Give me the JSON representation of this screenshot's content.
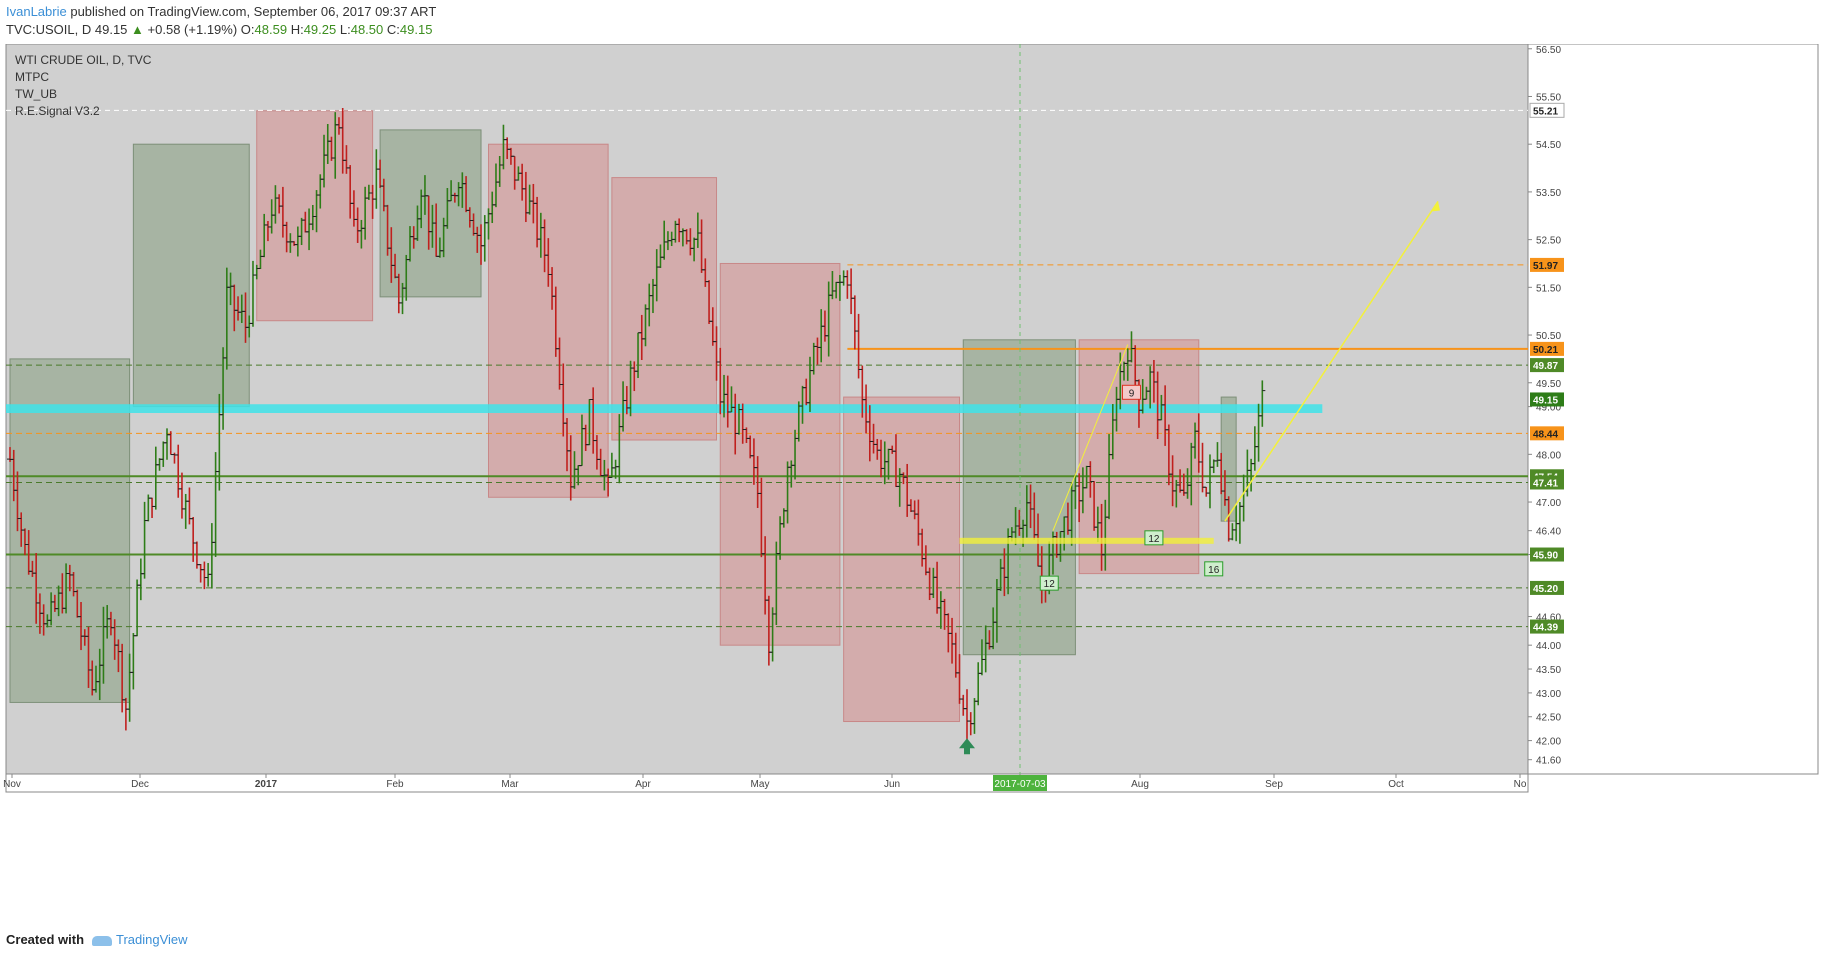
{
  "header": {
    "author": "IvanLabrie",
    "published": "published on TradingView.com, September 06, 2017 09:37 ART",
    "symbol": "TVC:USOIL, D",
    "price": "49.15",
    "change": "+0.58 (+1.19%)",
    "o_label": "O:",
    "o": "48.59",
    "h_label": "H:",
    "h": "49.25",
    "l_label": "L:",
    "l": "48.50",
    "c_label": "C:",
    "c": "49.15"
  },
  "legend": [
    "WTI CRUDE OIL, D, TVC",
    "MTPC",
    "TW_UB",
    "R.E.Signal V3.2"
  ],
  "footer": {
    "created": "Created with",
    "brand": "TradingView"
  },
  "colors": {
    "background": "#d0d0d0",
    "up_bar": "#2e7d18",
    "down_bar": "#c0201e",
    "green_box": "#9aab94",
    "red_box": "#d4a0a0",
    "cyan_band": "#3fe3e9",
    "orange": "#f7931a",
    "green_line": "#4f8a27"
  },
  "chart_data": {
    "type": "line",
    "title": "WTI CRUDE OIL, D, TVC",
    "y_range": [
      41.3,
      56.6
    ],
    "y_ticks": [
      "56.50",
      "55.50",
      "54.50",
      "53.50",
      "52.50",
      "51.50",
      "50.50",
      "49.50",
      "49.00",
      "48.00",
      "47.00",
      "46.40",
      "45.90",
      "44.60",
      "44.00",
      "43.50",
      "43.00",
      "42.50",
      "42.00",
      "41.60"
    ],
    "x_labels": [
      "Nov",
      "Dec",
      "2017",
      "Feb",
      "Mar",
      "Apr",
      "May",
      "Jun",
      "2017-07-03",
      "Aug",
      "Sep",
      "Oct",
      "No"
    ],
    "price_labels": [
      {
        "value": 55.21,
        "text": "55.21",
        "style": "white-dashed"
      },
      {
        "value": 51.97,
        "text": "51.97",
        "style": "orange"
      },
      {
        "value": 50.21,
        "text": "50.21",
        "style": "orange"
      },
      {
        "value": 49.87,
        "text": "49.87",
        "style": "green-dashed"
      },
      {
        "value": 49.15,
        "text": "49.15",
        "style": "current"
      },
      {
        "value": 48.44,
        "text": "48.44",
        "style": "orange"
      },
      {
        "value": 47.54,
        "text": "47.54",
        "style": "green"
      },
      {
        "value": 47.41,
        "text": "47.41",
        "style": "green-dashed"
      },
      {
        "value": 45.9,
        "text": "45.90",
        "style": "green"
      },
      {
        "value": 45.2,
        "text": "45.20",
        "style": "green-dashed"
      },
      {
        "value": 44.39,
        "text": "44.39",
        "style": "green-dashed"
      }
    ],
    "swings": [
      {
        "t": 0,
        "v": 47.9
      },
      {
        "t": 4,
        "v": 46.0
      },
      {
        "t": 10,
        "v": 44.4
      },
      {
        "t": 16,
        "v": 45.4
      },
      {
        "t": 22,
        "v": 43.1
      },
      {
        "t": 27,
        "v": 44.7
      },
      {
        "t": 31,
        "v": 42.7
      },
      {
        "t": 36,
        "v": 46.5
      },
      {
        "t": 42,
        "v": 48.6
      },
      {
        "t": 48,
        "v": 46.5
      },
      {
        "t": 53,
        "v": 45.2
      },
      {
        "t": 58,
        "v": 51.3
      },
      {
        "t": 63,
        "v": 50.7
      },
      {
        "t": 70,
        "v": 53.2
      },
      {
        "t": 77,
        "v": 52.4
      },
      {
        "t": 84,
        "v": 54.0
      },
      {
        "t": 88,
        "v": 55.0
      },
      {
        "t": 92,
        "v": 52.6
      },
      {
        "t": 98,
        "v": 53.8
      },
      {
        "t": 104,
        "v": 51.2
      },
      {
        "t": 110,
        "v": 53.7
      },
      {
        "t": 114,
        "v": 52.1
      },
      {
        "t": 120,
        "v": 53.9
      },
      {
        "t": 126,
        "v": 52.4
      },
      {
        "t": 132,
        "v": 54.4
      },
      {
        "t": 138,
        "v": 53.4
      },
      {
        "t": 144,
        "v": 52.0
      },
      {
        "t": 150,
        "v": 47.5
      },
      {
        "t": 155,
        "v": 48.8
      },
      {
        "t": 160,
        "v": 47.2
      },
      {
        "t": 166,
        "v": 49.6
      },
      {
        "t": 172,
        "v": 51.5
      },
      {
        "t": 178,
        "v": 53.0
      },
      {
        "t": 184,
        "v": 52.4
      },
      {
        "t": 190,
        "v": 49.2
      },
      {
        "t": 195,
        "v": 48.6
      },
      {
        "t": 200,
        "v": 47.2
      },
      {
        "t": 203,
        "v": 44.2
      },
      {
        "t": 208,
        "v": 47.8
      },
      {
        "t": 214,
        "v": 49.7
      },
      {
        "t": 220,
        "v": 51.3
      },
      {
        "t": 224,
        "v": 51.8
      },
      {
        "t": 228,
        "v": 49.1
      },
      {
        "t": 232,
        "v": 48.0
      },
      {
        "t": 238,
        "v": 47.6
      },
      {
        "t": 243,
        "v": 46.3
      },
      {
        "t": 248,
        "v": 44.8
      },
      {
        "t": 252,
        "v": 43.9
      },
      {
        "t": 256,
        "v": 42.4
      },
      {
        "t": 260,
        "v": 43.6
      },
      {
        "t": 264,
        "v": 45.0
      },
      {
        "t": 268,
        "v": 46.4
      },
      {
        "t": 272,
        "v": 47.0
      },
      {
        "t": 276,
        "v": 45.2
      },
      {
        "t": 280,
        "v": 46.2
      },
      {
        "t": 284,
        "v": 46.9
      },
      {
        "t": 288,
        "v": 47.5
      },
      {
        "t": 292,
        "v": 46.0
      },
      {
        "t": 296,
        "v": 49.4
      },
      {
        "t": 299,
        "v": 50.3
      },
      {
        "t": 302,
        "v": 49.2
      },
      {
        "t": 305,
        "v": 49.6
      },
      {
        "t": 308,
        "v": 48.7
      },
      {
        "t": 311,
        "v": 47.4
      },
      {
        "t": 314,
        "v": 47.0
      },
      {
        "t": 317,
        "v": 48.3
      },
      {
        "t": 320,
        "v": 47.2
      },
      {
        "t": 323,
        "v": 48.1
      },
      {
        "t": 326,
        "v": 46.5
      },
      {
        "t": 329,
        "v": 46.9
      },
      {
        "t": 332,
        "v": 47.7
      },
      {
        "t": 335,
        "v": 49.15
      }
    ],
    "zones": [
      {
        "kind": "green",
        "t0": 0,
        "t1": 32,
        "top": 50.0,
        "bottom": 42.8
      },
      {
        "kind": "green",
        "t0": 33,
        "t1": 64,
        "top": 54.5,
        "bottom": 49.0
      },
      {
        "kind": "red",
        "t0": 66,
        "t1": 97,
        "top": 55.2,
        "bottom": 50.8
      },
      {
        "kind": "green",
        "t0": 99,
        "t1": 126,
        "top": 54.8,
        "bottom": 51.3
      },
      {
        "kind": "red",
        "t0": 128,
        "t1": 160,
        "top": 54.5,
        "bottom": 47.1
      },
      {
        "kind": "red",
        "t0": 161,
        "t1": 189,
        "top": 53.8,
        "bottom": 48.3
      },
      {
        "kind": "red",
        "t0": 190,
        "t1": 222,
        "top": 52.0,
        "bottom": 44.0
      },
      {
        "kind": "red",
        "t0": 223,
        "t1": 254,
        "top": 49.2,
        "bottom": 42.4
      },
      {
        "kind": "green",
        "t0": 255,
        "t1": 285,
        "top": 50.4,
        "bottom": 43.8
      },
      {
        "kind": "red",
        "t0": 286,
        "t1": 318,
        "top": 50.4,
        "bottom": 45.5
      },
      {
        "kind": "green",
        "t0": 324,
        "t1": 328,
        "top": 49.2,
        "bottom": 46.6
      }
    ],
    "callouts": [
      {
        "text": "9",
        "t": 300,
        "v": 49.3,
        "color": "red"
      },
      {
        "text": "12",
        "t": 306,
        "v": 46.25,
        "color": "green"
      },
      {
        "text": "12",
        "t": 278,
        "v": 45.3,
        "color": "green"
      },
      {
        "text": "16",
        "t": 322,
        "v": 45.6,
        "color": "green"
      }
    ]
  }
}
